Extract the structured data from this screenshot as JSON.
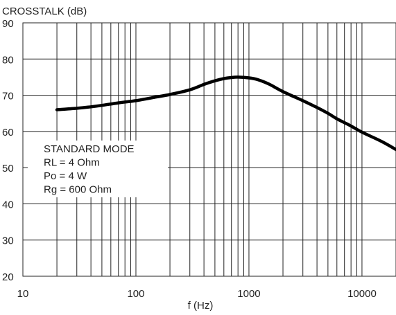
{
  "chart_data": {
    "type": "line",
    "title": "",
    "ylabel": "CROSSTALK (dB)",
    "xlabel": "f (Hz)",
    "x_scale": "log",
    "xlim": [
      10,
      20000
    ],
    "ylim": [
      20,
      90
    ],
    "x_tick_labels": [
      "10",
      "100",
      "1000",
      "10000"
    ],
    "x_tick_values": [
      10,
      100,
      1000,
      10000
    ],
    "y_tick_labels": [
      "20",
      "30",
      "40",
      "50",
      "60",
      "70",
      "80",
      "90"
    ],
    "y_tick_values": [
      20,
      30,
      40,
      50,
      60,
      70,
      80,
      90
    ],
    "grid": true,
    "annotation_lines": [
      "STANDARD MODE",
      "RL = 4 Ohm",
      "Po = 4 W",
      "Rg = 600 Ohm"
    ],
    "series": [
      {
        "x": [
          20,
          30,
          40,
          50,
          70,
          100,
          150,
          200,
          300,
          400,
          500,
          600,
          700,
          800,
          1000,
          1200,
          1500,
          2000,
          3000,
          4000,
          5000,
          6000,
          8000,
          10000,
          15000,
          20000
        ],
        "y": [
          66,
          66.4,
          66.8,
          67.2,
          67.9,
          68.5,
          69.5,
          70.2,
          71.5,
          73,
          74,
          74.6,
          74.9,
          75,
          74.8,
          74.3,
          73.1,
          71,
          68.5,
          66.6,
          65,
          63.5,
          61.5,
          59.8,
          57.2,
          55
        ]
      }
    ],
    "line_color": "#000000",
    "grid_color": "#222222"
  }
}
